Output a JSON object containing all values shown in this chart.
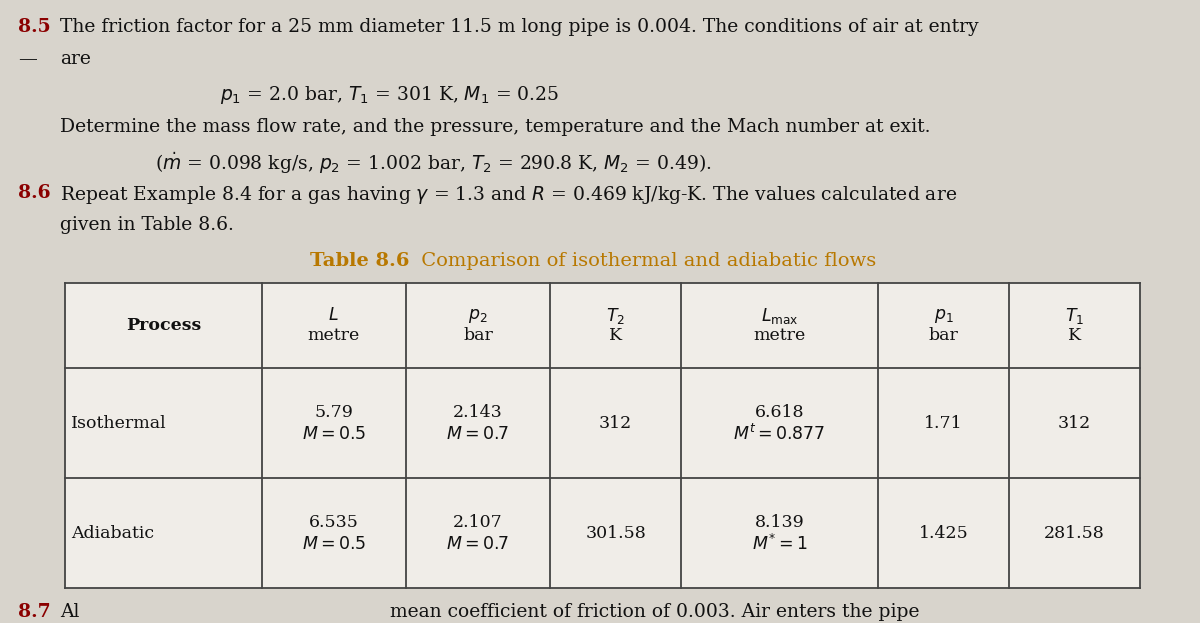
{
  "bg_color": "#d8d4cc",
  "cell_bg": "#f0ede8",
  "title_color": "#b87800",
  "text_color": "#111111",
  "section_label_color": "#8B0000",
  "fig_width": 12.0,
  "fig_height": 6.23,
  "problem_85_number": "8.5",
  "problem_85_line1": "The friction factor for a 25 mm diameter 11.5 m long pipe is 0.004. The conditions of air at entry",
  "problem_85_line2": "are",
  "problem_85_conditions": "$p_1$ = 2.0 bar, $T_1$ = 301 K, $M_1$ = 0.25",
  "problem_85_question": "Determine the mass flow rate, and the pressure, temperature and the Mach number at exit.",
  "problem_85_answer": "($\\dot{m}$ = 0.098 kg/s, $p_2$ = 1.002 bar, $T_2$ = 290.8 K, $M_2$ = 0.49).",
  "problem_86_number": "8.6",
  "problem_86_line1": "Repeat Example 8.4 for a gas having $\\gamma$ = 1.3 and $R$ = 0.469 kJ/kg-K. The values calculated are",
  "problem_86_line2": "given in Table 8.6.",
  "table_title_bold": "Table 8.6",
  "table_title_rest": " Comparison of isothermal and adiabatic flows",
  "col_widths_rel": [
    1.5,
    1.1,
    1.1,
    1.0,
    1.5,
    1.0,
    1.0
  ],
  "footer_87_number": "8.7",
  "footer_87_text": "Al",
  "footer_text": "mean coefficient of friction of 0.003. Air enters the pipe"
}
